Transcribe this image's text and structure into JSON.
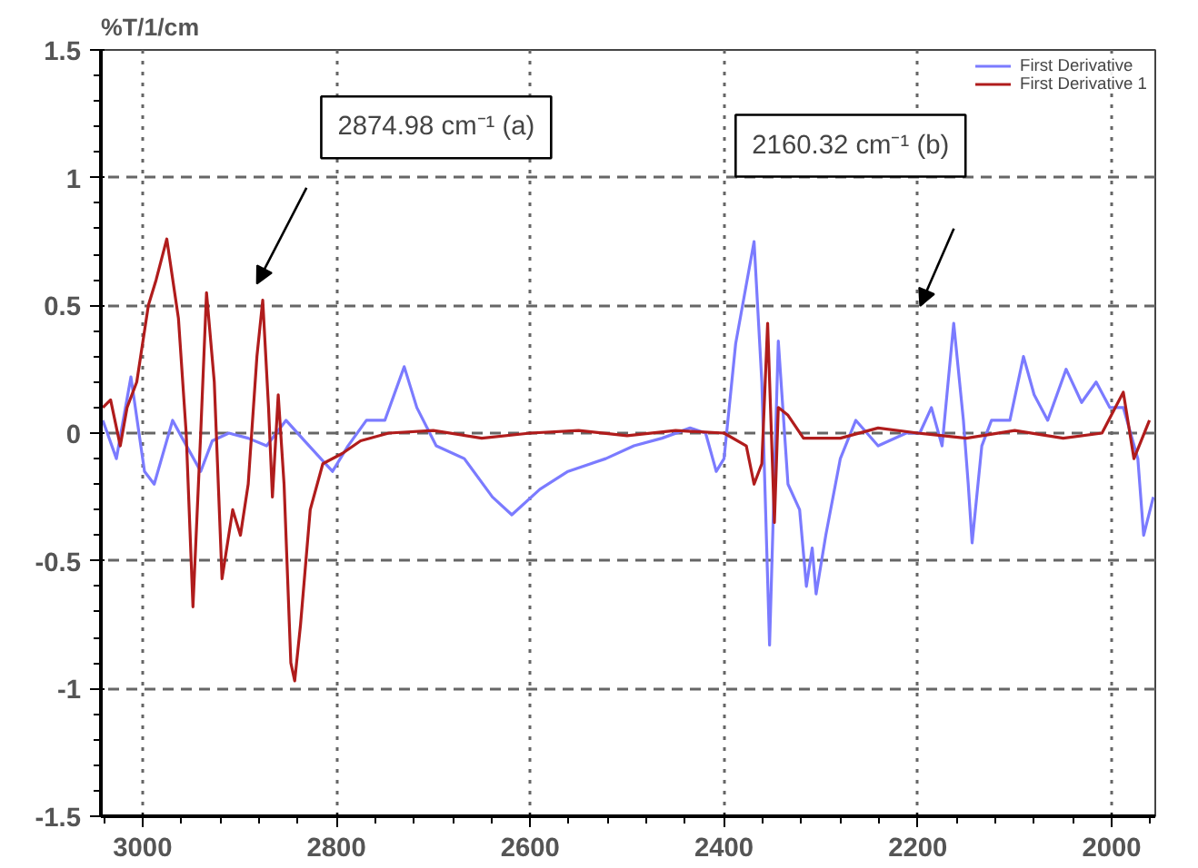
{
  "chart_data": {
    "type": "line",
    "ylabel": "%T/1/cm",
    "xlim": [
      3043,
      1955
    ],
    "xticks": [
      3000,
      2800,
      2600,
      2400,
      2200,
      2000
    ],
    "ylim": [
      -1.5,
      1.5
    ],
    "yticks": [
      -1.5,
      -1,
      -0.5,
      0,
      0.5,
      1,
      1.5
    ],
    "grid": true,
    "legend": "top right",
    "line_style": "solid",
    "marker": "none",
    "series": [
      {
        "name": "First Derivative",
        "color": "#7b7bff",
        "x": [
          3041,
          3027,
          3012,
          2998,
          2988,
          2969,
          2959,
          2940,
          2928,
          2911,
          2891,
          2872,
          2852,
          2833,
          2804,
          2788,
          2769,
          2750,
          2730,
          2717,
          2697,
          2668,
          2639,
          2619,
          2590,
          2561,
          2522,
          2493,
          2464,
          2435,
          2419,
          2408,
          2400,
          2388,
          2369,
          2361,
          2353,
          2344,
          2334,
          2322,
          2315,
          2309,
          2305,
          2295,
          2280,
          2264,
          2241,
          2212,
          2198,
          2186,
          2175,
          2163,
          2153,
          2148,
          2144,
          2134,
          2124,
          2105,
          2091,
          2080,
          2066,
          2047,
          2031,
          2016,
          2002,
          1988,
          1973,
          1967,
          1957
        ],
        "values": [
          0.05,
          -0.1,
          0.22,
          -0.15,
          -0.2,
          0.05,
          -0.02,
          -0.15,
          -0.03,
          0.0,
          -0.02,
          -0.05,
          0.05,
          -0.03,
          -0.15,
          -0.05,
          0.05,
          0.05,
          0.26,
          0.1,
          -0.05,
          -0.1,
          -0.25,
          -0.32,
          -0.22,
          -0.15,
          -0.1,
          -0.05,
          -0.02,
          0.02,
          0.0,
          -0.15,
          -0.1,
          0.35,
          0.75,
          0.2,
          -0.83,
          0.36,
          -0.2,
          -0.3,
          -0.6,
          -0.45,
          -0.63,
          -0.4,
          -0.1,
          0.05,
          -0.05,
          0.0,
          0.0,
          0.1,
          -0.05,
          0.43,
          0.05,
          -0.2,
          -0.43,
          -0.05,
          0.05,
          0.05,
          0.3,
          0.15,
          0.05,
          0.25,
          0.12,
          0.2,
          0.1,
          0.1,
          -0.1,
          -0.4,
          -0.25
        ]
      },
      {
        "name": "First Derivative 1",
        "color": "#b01c1c",
        "x": [
          3041,
          3033,
          3023,
          3016,
          3006,
          2994,
          2986,
          2975,
          2963,
          2955,
          2948,
          2940,
          2934,
          2926,
          2918,
          2907,
          2899,
          2891,
          2882,
          2876,
          2870,
          2866,
          2860,
          2854,
          2847,
          2843,
          2837,
          2827,
          2814,
          2794,
          2775,
          2746,
          2700,
          2650,
          2600,
          2550,
          2500,
          2450,
          2400,
          2377,
          2369,
          2361,
          2355,
          2348,
          2344,
          2334,
          2318,
          2280,
          2241,
          2200,
          2150,
          2100,
          2050,
          2010,
          1988,
          1977,
          1961
        ],
        "values": [
          0.1,
          0.13,
          -0.05,
          0.1,
          0.2,
          0.5,
          0.6,
          0.76,
          0.45,
          0.0,
          -0.68,
          0.0,
          0.55,
          0.2,
          -0.57,
          -0.3,
          -0.4,
          -0.2,
          0.3,
          0.52,
          0.1,
          -0.25,
          0.15,
          -0.2,
          -0.9,
          -0.97,
          -0.75,
          -0.3,
          -0.12,
          -0.08,
          -0.03,
          0.0,
          0.01,
          -0.02,
          0.0,
          0.01,
          -0.01,
          0.01,
          0.0,
          -0.05,
          -0.2,
          -0.12,
          0.43,
          -0.35,
          0.1,
          0.07,
          -0.02,
          -0.02,
          0.02,
          0.0,
          -0.02,
          0.01,
          -0.02,
          0.0,
          0.16,
          -0.1,
          0.05
        ]
      }
    ],
    "annotations": [
      "2874.98 cm⁻¹ (a)",
      "2160.32 cm⁻¹ (b)"
    ]
  }
}
